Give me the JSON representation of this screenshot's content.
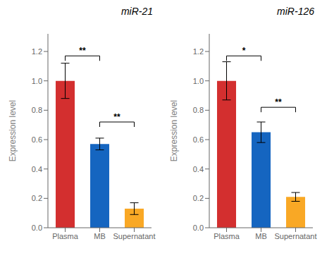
{
  "chart_data": [
    {
      "type": "bar",
      "title": "miR-21",
      "categories": [
        "Plasma",
        "MB",
        "Supernatant"
      ],
      "values": [
        1.0,
        0.57,
        0.13
      ],
      "errors": [
        0.12,
        0.04,
        0.04
      ],
      "colors": [
        "#d32f2f",
        "#1565c0",
        "#f9a825"
      ],
      "ylim": [
        0,
        1.32
      ],
      "yticks": [
        {
          "value": 0,
          "label": "0.0"
        },
        0.2,
        0.4,
        0.6,
        0.8,
        {
          "value": 1.0,
          "label": "1.0"
        },
        1.2
      ],
      "ylabel": "Expression level",
      "annotations": [
        {
          "x1": "Plasma",
          "x2": "MB",
          "y": 1.17,
          "label": "**"
        },
        {
          "x1": "MB",
          "x2": "Supernatant",
          "y": 0.72,
          "label": "**"
        }
      ]
    },
    {
      "type": "bar",
      "title": "miR-126",
      "categories": [
        "Plasma",
        "MB",
        "Supernatant"
      ],
      "values": [
        1.0,
        0.65,
        0.21
      ],
      "errors": [
        0.13,
        0.07,
        0.03
      ],
      "colors": [
        "#d32f2f",
        "#1565c0",
        "#f9a825"
      ],
      "ylim": [
        0,
        1.32
      ],
      "yticks": [
        {
          "value": 0,
          "label": "0.0"
        },
        0.2,
        0.4,
        0.6,
        0.8,
        {
          "value": 1.0,
          "label": "1.0"
        },
        1.2
      ],
      "ylabel": "Expression level",
      "annotations": [
        {
          "x1": "Plasma",
          "x2": "MB",
          "y": 1.17,
          "label": "*"
        },
        {
          "x1": "MB",
          "x2": "Supernatant",
          "y": 0.82,
          "label": "**"
        }
      ]
    }
  ]
}
